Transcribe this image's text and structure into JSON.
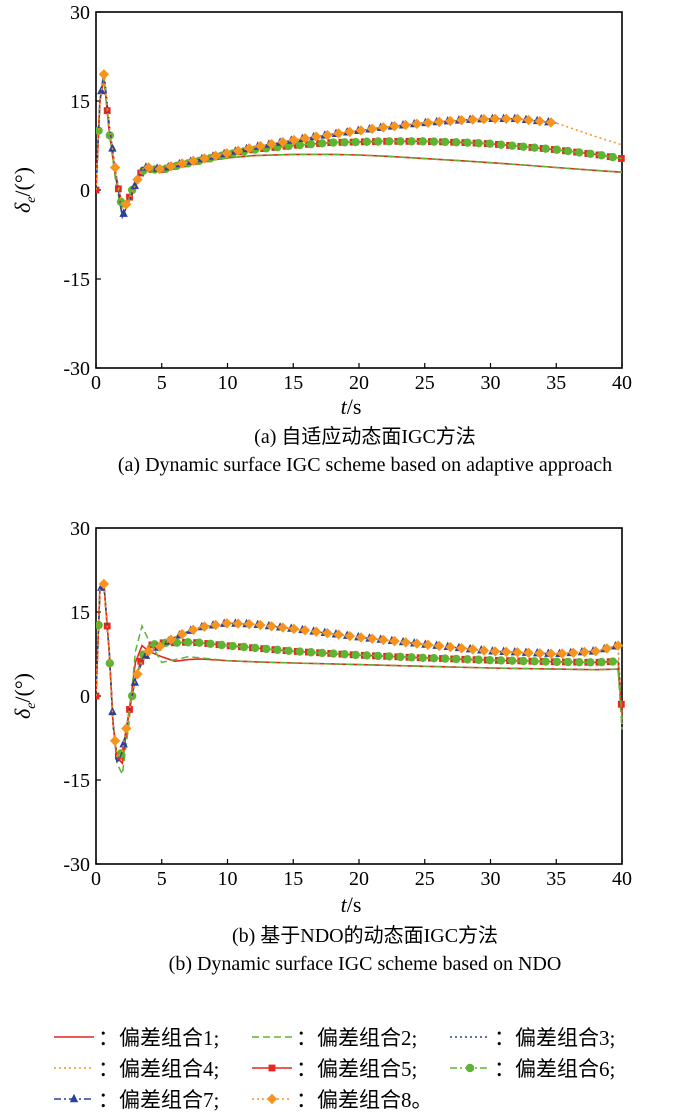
{
  "colors": {
    "red": "#e8251f",
    "green": "#5db531",
    "blue": "#2b3f9e",
    "orange": "#f7941d",
    "axis": "#000000"
  },
  "legend": [
    {
      "label": "：偏差组合1;",
      "color": "#e8251f",
      "dash": "solid",
      "marker": "none"
    },
    {
      "label": "：偏差组合2;",
      "color": "#5db531",
      "dash": "dashed",
      "marker": "none"
    },
    {
      "label": "：偏差组合3;",
      "color": "#2b3f9e",
      "dash": "dotted",
      "marker": "none"
    },
    {
      "label": "：偏差组合4;",
      "color": "#f7941d",
      "dash": "dotted",
      "marker": "none"
    },
    {
      "label": "：偏差组合5;",
      "color": "#e8251f",
      "dash": "solid",
      "marker": "square"
    },
    {
      "label": "：偏差组合6;",
      "color": "#5db531",
      "dash": "dashdot",
      "marker": "circle"
    },
    {
      "label": "：偏差组合7;",
      "color": "#2b3f9e",
      "dash": "dashdot",
      "marker": "triangle"
    },
    {
      "label": "：偏差组合8。",
      "color": "#f7941d",
      "dash": "dotted",
      "marker": "diamond"
    }
  ],
  "chart_data": [
    {
      "type": "line",
      "caption_cn": "(a) 自适应动态面IGC方法",
      "caption_en": "(a) Dynamic surface IGC scheme based on adaptive approach",
      "xlabel_t": "t",
      "xlabel_unit": "/s",
      "ylabel_sym": "δ",
      "ylabel_sub": "e",
      "ylabel_unit": "/(°)",
      "xlim": [
        0,
        40
      ],
      "ylim": [
        -30,
        30
      ],
      "xticks": [
        0,
        5,
        10,
        15,
        20,
        25,
        30,
        35,
        40
      ],
      "yticks": [
        -30,
        -15,
        0,
        15,
        30
      ],
      "x": [
        0,
        0.3,
        0.6,
        1,
        1.5,
        2,
        2.5,
        3,
        3.5,
        4,
        5,
        6,
        8,
        10,
        12,
        15,
        18,
        20,
        22,
        25,
        28,
        30,
        32,
        35,
        38,
        40
      ],
      "series": [
        {
          "name": "偏差组合1",
          "values": [
            0,
            15,
            19,
            10,
            2,
            -2.5,
            -1.5,
            1.5,
            3,
            3.2,
            3.3,
            3.8,
            4.8,
            5.4,
            5.8,
            6,
            6,
            5.9,
            5.7,
            5.3,
            4.9,
            4.6,
            4.3,
            3.8,
            3.3,
            3.0
          ]
        },
        {
          "name": "偏差组合2",
          "values": [
            0,
            15,
            19,
            10,
            1.5,
            -4.5,
            -2,
            1.2,
            3,
            3.2,
            3.3,
            3.8,
            4.8,
            5.4,
            5.8,
            6,
            6,
            5.9,
            5.7,
            5.3,
            4.9,
            4.6,
            4.3,
            3.8,
            3.3,
            3.0
          ]
        },
        {
          "name": "偏差组合3",
          "values": [
            0,
            15,
            20,
            11,
            3,
            -3,
            -2,
            1,
            3.5,
            3.8,
            3.5,
            4.2,
            5.2,
            6.2,
            7.2,
            8.4,
            9.4,
            10,
            10.6,
            11.3,
            11.8,
            12,
            12,
            11.3,
            null,
            null
          ]
        },
        {
          "name": "偏差组合4",
          "values": [
            0,
            15,
            19.5,
            11,
            3,
            -3,
            -2,
            1,
            3.5,
            3.8,
            3.5,
            4.2,
            5.2,
            6.2,
            7.2,
            8.4,
            9.4,
            10,
            10.6,
            11.3,
            11.8,
            12,
            12,
            11.3,
            9,
            7.6
          ]
        },
        {
          "name": "偏差组合5",
          "values": [
            0,
            15,
            19,
            10,
            2,
            -2.5,
            -1.5,
            1.5,
            3.2,
            3.5,
            3.4,
            4,
            5,
            6,
            6.8,
            7.5,
            8,
            8.1,
            8.2,
            8.2,
            8,
            7.8,
            7.4,
            6.8,
            6,
            5.3
          ]
        },
        {
          "name": "偏差组合6",
          "values": [
            0,
            15,
            19,
            10,
            2,
            -3,
            -1.5,
            1.5,
            3.2,
            3.5,
            3.4,
            4,
            5,
            6,
            6.8,
            7.5,
            8,
            8.1,
            8.2,
            8.2,
            8,
            7.8,
            7.4,
            6.8,
            6,
            5.3
          ]
        },
        {
          "name": "偏差组合7",
          "values": [
            0,
            15,
            20,
            11,
            3,
            -4.5,
            -2,
            1,
            3.8,
            3.8,
            3.5,
            4.2,
            5.2,
            6.2,
            7.2,
            8.4,
            9.4,
            10,
            10.6,
            11.3,
            11.8,
            12,
            12,
            11.3,
            null,
            null
          ]
        },
        {
          "name": "偏差组合8",
          "values": [
            0,
            15,
            19.5,
            11,
            3,
            -3,
            -2,
            1,
            3.5,
            3.8,
            3.5,
            4.2,
            5.2,
            6.2,
            7.2,
            8.4,
            9.4,
            10,
            10.6,
            11.3,
            11.8,
            12,
            12,
            11.3,
            null,
            null
          ]
        }
      ]
    },
    {
      "type": "line",
      "caption_cn": "(b) 基于NDO的动态面IGC方法",
      "caption_en": "(b) Dynamic surface IGC scheme based on NDO",
      "xlabel_t": "t",
      "xlabel_unit": "/s",
      "ylabel_sym": "δ",
      "ylabel_sub": "e",
      "ylabel_unit": "/(°)",
      "xlim": [
        0,
        40
      ],
      "ylim": [
        -30,
        30
      ],
      "xticks": [
        0,
        5,
        10,
        15,
        20,
        25,
        30,
        35,
        40
      ],
      "yticks": [
        -30,
        -15,
        0,
        15,
        30
      ],
      "x": [
        0,
        0.3,
        0.6,
        1,
        1.3,
        1.6,
        2,
        2.5,
        3,
        3.5,
        4,
        5,
        6,
        7,
        8,
        10,
        12,
        15,
        20,
        25,
        30,
        35,
        38,
        39.7,
        40
      ],
      "series": [
        {
          "name": "偏差组合1",
          "values": [
            0,
            19,
            20,
            8,
            -5,
            -11,
            -12,
            -3,
            6,
            9,
            8,
            7,
            6.2,
            6.5,
            6.6,
            6.3,
            6.1,
            5.9,
            5.6,
            5.3,
            5,
            4.8,
            4.7,
            4.8,
            -3
          ]
        },
        {
          "name": "偏差组合2",
          "values": [
            0,
            19,
            20,
            8,
            -5,
            -12,
            -14,
            -5,
            8,
            12.5,
            10,
            6,
            6.5,
            7,
            6.8,
            6.3,
            6.1,
            5.9,
            5.6,
            5.3,
            5,
            4.8,
            4.7,
            4.8,
            -6
          ]
        },
        {
          "name": "偏差组合3",
          "values": [
            0,
            19,
            20,
            8,
            -5,
            -11,
            -10,
            -3,
            3,
            6,
            8,
            9,
            10.5,
            11.5,
            12.3,
            13,
            12.8,
            12,
            10.5,
            9.2,
            8,
            7.5,
            8,
            9,
            -4
          ]
        },
        {
          "name": "偏差组合4",
          "values": [
            0,
            19,
            20,
            8,
            -5,
            -11,
            -10,
            -3,
            3,
            6,
            8,
            9,
            10.5,
            11.5,
            12.3,
            13,
            12.8,
            12,
            10.5,
            9.2,
            8,
            7.5,
            8,
            9,
            -5
          ]
        },
        {
          "name": "偏差组合5",
          "values": [
            0,
            19,
            20,
            8,
            -5,
            -11,
            -10,
            -3,
            3,
            7,
            9,
            9.5,
            9.5,
            9.6,
            9.5,
            9,
            8.6,
            8,
            7.3,
            6.8,
            6.4,
            6.1,
            6,
            6.2,
            -3
          ]
        },
        {
          "name": "偏差组合6",
          "values": [
            0,
            19,
            20,
            8,
            -5,
            -11,
            -10,
            -3,
            3,
            7,
            9,
            9.5,
            9.5,
            9.6,
            9.5,
            9,
            8.6,
            8,
            7.3,
            6.8,
            6.4,
            6.1,
            6,
            6.2,
            -4
          ]
        },
        {
          "name": "偏差组合7",
          "values": [
            0,
            19,
            20,
            8,
            -5,
            -12,
            -10,
            -3,
            3,
            6,
            8,
            9,
            10.5,
            11.5,
            12.3,
            13,
            12.8,
            12,
            10.5,
            9.2,
            8,
            7.5,
            8,
            9,
            null
          ]
        },
        {
          "name": "偏差组合8",
          "values": [
            0,
            19,
            20,
            8,
            -5,
            -11,
            -10,
            -3,
            3,
            6,
            8,
            9,
            10.5,
            11.5,
            12.3,
            13,
            12.8,
            12,
            10.5,
            9.2,
            8,
            7.5,
            8,
            9,
            null
          ]
        }
      ]
    }
  ]
}
